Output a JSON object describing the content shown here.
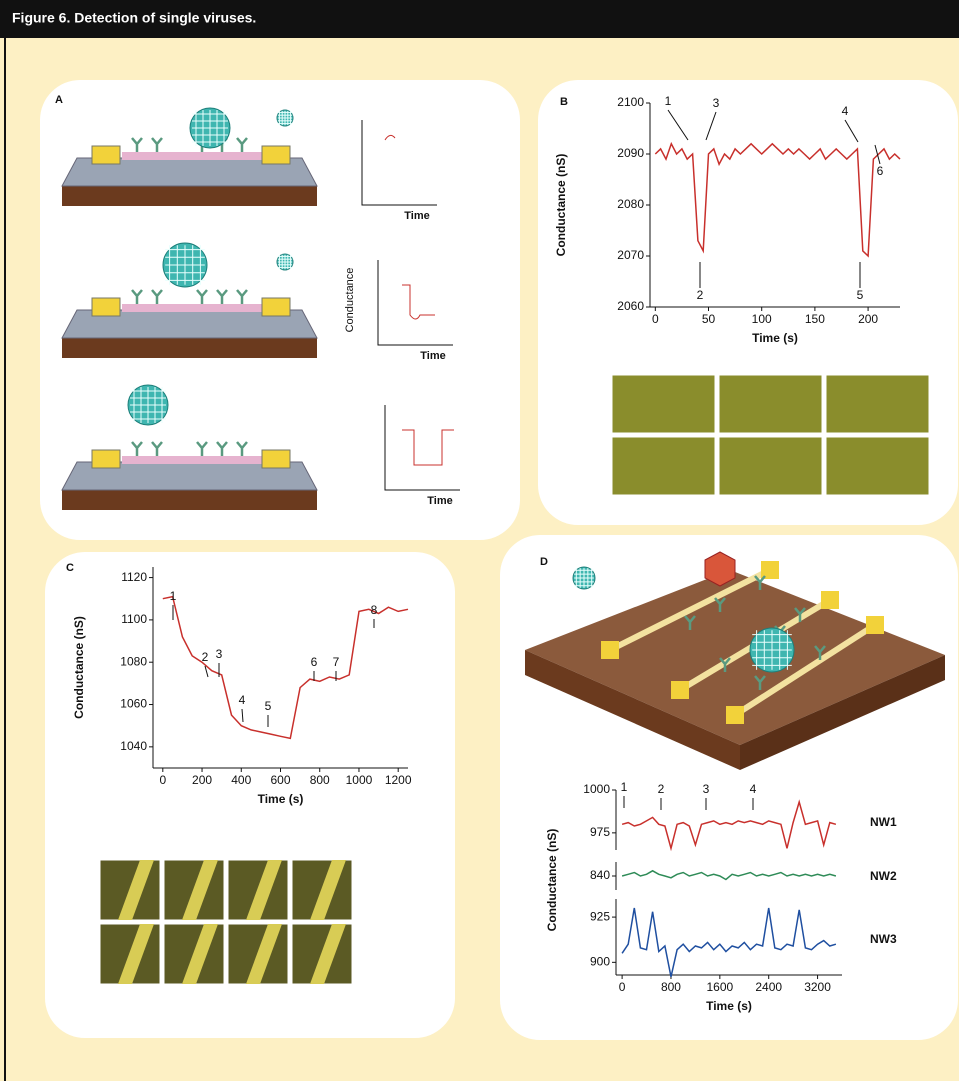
{
  "title": "Figure 6. Detection of single viruses.",
  "panel_labels": [
    "A",
    "B",
    "C",
    "D"
  ],
  "panel_a": {
    "y_label": "Conductance",
    "x_labels": [
      "Time",
      "Time",
      "Time"
    ]
  },
  "chart_data": [
    {
      "type": "line",
      "x_label": "Time (s)",
      "y_label": "Conductance (nS)",
      "color": "#c8302c",
      "x": [
        0,
        5,
        10,
        15,
        20,
        25,
        30,
        35,
        40,
        45,
        50,
        55,
        60,
        65,
        70,
        75,
        80,
        85,
        90,
        95,
        100,
        105,
        110,
        115,
        120,
        125,
        130,
        135,
        140,
        145,
        150,
        155,
        160,
        165,
        170,
        175,
        180,
        185,
        190,
        195,
        200,
        205,
        210,
        215,
        220,
        225,
        230
      ],
      "values": [
        2090,
        2091,
        2089,
        2092,
        2090,
        2091,
        2089,
        2090,
        2073,
        2071,
        2090,
        2091,
        2088,
        2090,
        2089,
        2091,
        2090,
        2091,
        2092,
        2091,
        2090,
        2091,
        2092,
        2091,
        2090,
        2091,
        2090,
        2091,
        2090,
        2089,
        2090,
        2091,
        2089,
        2090,
        2091,
        2090,
        2089,
        2090,
        2091,
        2071,
        2070,
        2089,
        2090,
        2091,
        2089,
        2090,
        2089
      ],
      "xlim": [
        -5,
        230
      ],
      "xticks": [
        0,
        50,
        100,
        150,
        200
      ],
      "ylim": [
        2060,
        2100
      ],
      "yticks": [
        2060,
        2070,
        2080,
        2090,
        2100
      ],
      "annotations": [
        "1",
        "2",
        "3",
        "4",
        "5",
        "6"
      ]
    },
    {
      "type": "line",
      "x_label": "Time (s)",
      "y_label": "Conductance (nS)",
      "color": "#c8302c",
      "x": [
        0,
        50,
        100,
        150,
        200,
        250,
        300,
        350,
        400,
        450,
        500,
        550,
        600,
        650,
        700,
        750,
        800,
        850,
        900,
        950,
        1000,
        1050,
        1100,
        1150,
        1200,
        1250
      ],
      "values": [
        1110,
        1111,
        1092,
        1083,
        1080,
        1076,
        1074,
        1055,
        1050,
        1048,
        1047,
        1046,
        1045,
        1044,
        1068,
        1072,
        1071,
        1073,
        1072,
        1074,
        1104,
        1105,
        1103,
        1106,
        1104,
        1105
      ],
      "xlim": [
        -50,
        1250
      ],
      "xticks": [
        0,
        200,
        400,
        600,
        800,
        1000,
        1200
      ],
      "ylim": [
        1030,
        1125
      ],
      "yticks": [
        1040,
        1060,
        1080,
        1100,
        1120
      ],
      "annotations": [
        "1",
        "2",
        "3",
        "4",
        "5",
        "6",
        "7",
        "8"
      ]
    },
    {
      "type": "multi-line",
      "x_label": "Time (s)",
      "y_label": "Conductance (nS)",
      "x": [
        0,
        100,
        200,
        300,
        400,
        500,
        600,
        700,
        800,
        900,
        1000,
        1100,
        1200,
        1300,
        1400,
        1500,
        1600,
        1700,
        1800,
        1900,
        2000,
        2100,
        2200,
        2300,
        2400,
        2500,
        2600,
        2700,
        2800,
        2900,
        3000,
        3100,
        3200,
        3300,
        3400,
        3500
      ],
      "xlim": [
        -100,
        3600
      ],
      "xticks": [
        0,
        800,
        1600,
        2400,
        3200
      ],
      "series": [
        {
          "name": "NW1",
          "color": "#c8302c",
          "ylim": [
            965,
            1000
          ],
          "yticks": [
            975,
            1000
          ],
          "values": [
            980,
            981,
            979,
            980,
            982,
            984,
            980,
            979,
            966,
            980,
            981,
            979,
            968,
            980,
            981,
            982,
            980,
            981,
            980,
            982,
            981,
            982,
            981,
            980,
            982,
            981,
            980,
            966,
            981,
            993,
            980,
            981,
            982,
            968,
            981,
            980
          ]
        },
        {
          "name": "NW2",
          "color": "#2e8b57",
          "ylim": [
            832,
            848
          ],
          "yticks": [
            840
          ],
          "values": [
            840,
            841,
            842,
            840,
            841,
            843,
            841,
            840,
            839,
            841,
            842,
            840,
            841,
            842,
            840,
            841,
            840,
            838,
            841,
            840,
            841,
            842,
            840,
            841,
            840,
            841,
            842,
            840,
            841,
            840,
            841,
            840,
            841,
            840,
            841,
            840
          ]
        },
        {
          "name": "NW3",
          "color": "#1f4fa0",
          "ylim": [
            893,
            935
          ],
          "yticks": [
            900,
            925
          ],
          "values": [
            905,
            910,
            930,
            908,
            907,
            928,
            906,
            909,
            892,
            907,
            910,
            906,
            909,
            908,
            911,
            907,
            910,
            906,
            909,
            908,
            911,
            907,
            910,
            909,
            930,
            908,
            907,
            910,
            909,
            929,
            908,
            907,
            910,
            912,
            909,
            910
          ]
        }
      ],
      "annotations": [
        "1",
        "2",
        "3",
        "4"
      ]
    }
  ]
}
